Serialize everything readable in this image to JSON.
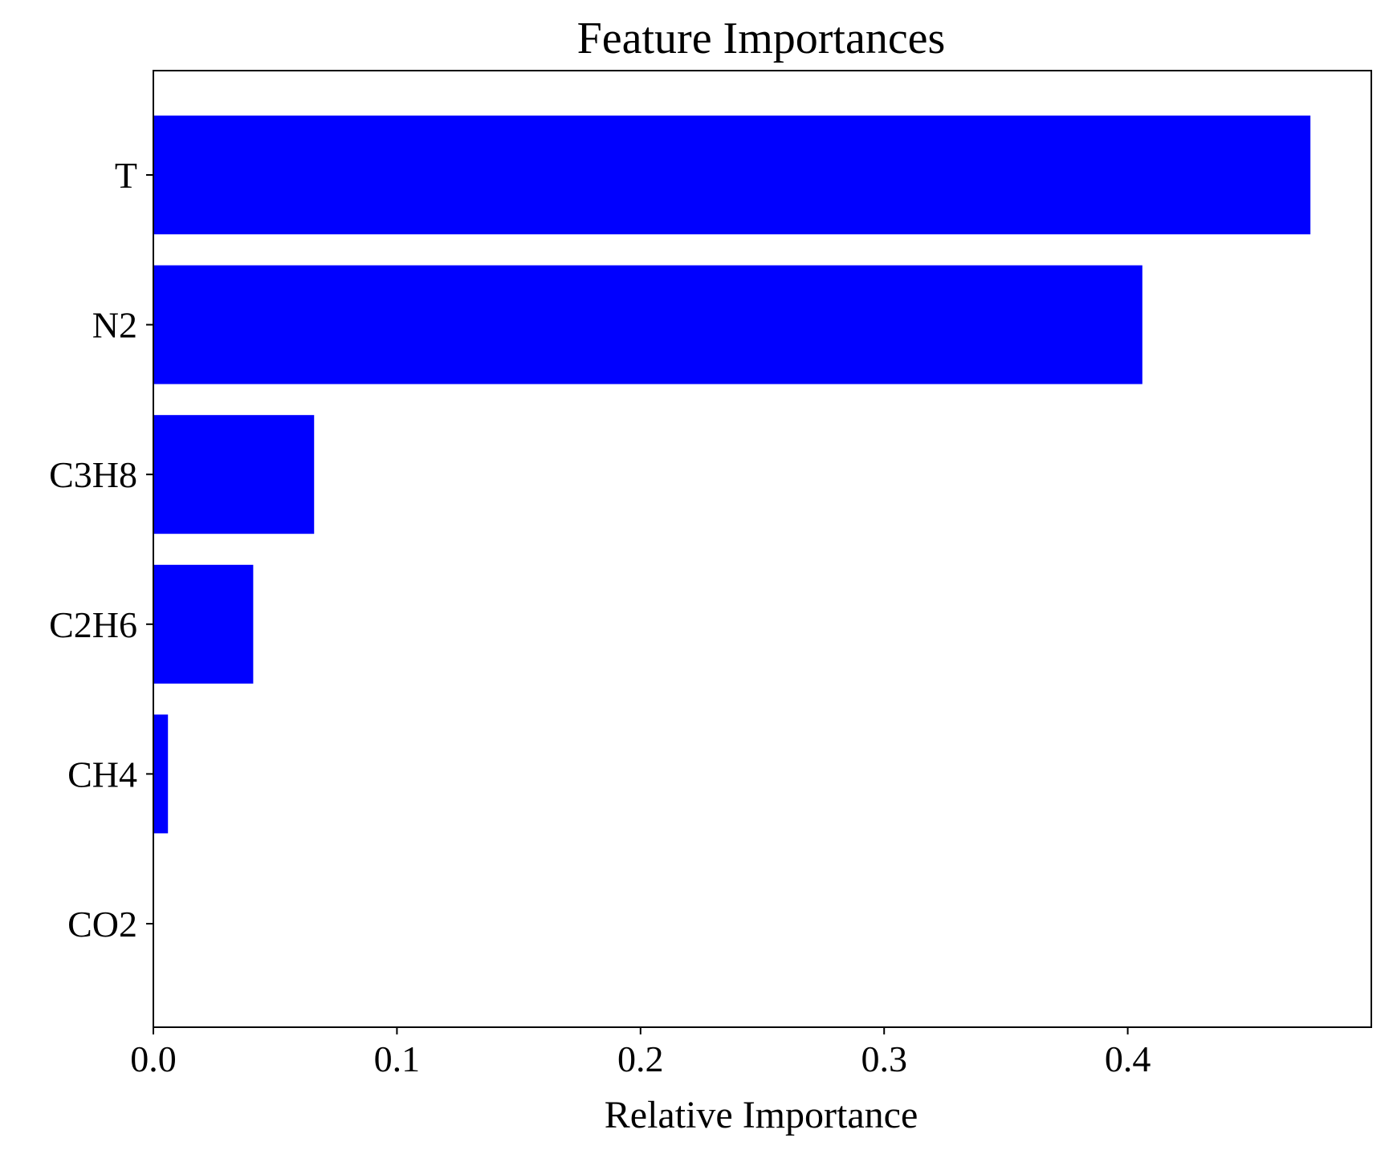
{
  "chart_data": {
    "type": "bar",
    "orientation": "horizontal",
    "title": "Feature Importances",
    "xlabel": "Relative Importance",
    "ylabel": "",
    "categories": [
      "T",
      "N2",
      "C3H8",
      "C2H6",
      "CH4",
      "CO2"
    ],
    "values": [
      0.475,
      0.406,
      0.066,
      0.041,
      0.006,
      0.0
    ],
    "xlim": [
      0.0,
      0.5
    ],
    "xticks": [
      0.0,
      0.1,
      0.2,
      0.3,
      0.4
    ],
    "xtick_labels": [
      "0.0",
      "0.1",
      "0.2",
      "0.3",
      "0.4"
    ],
    "bar_color": "#0000ff",
    "grid": false,
    "legend": "none"
  }
}
